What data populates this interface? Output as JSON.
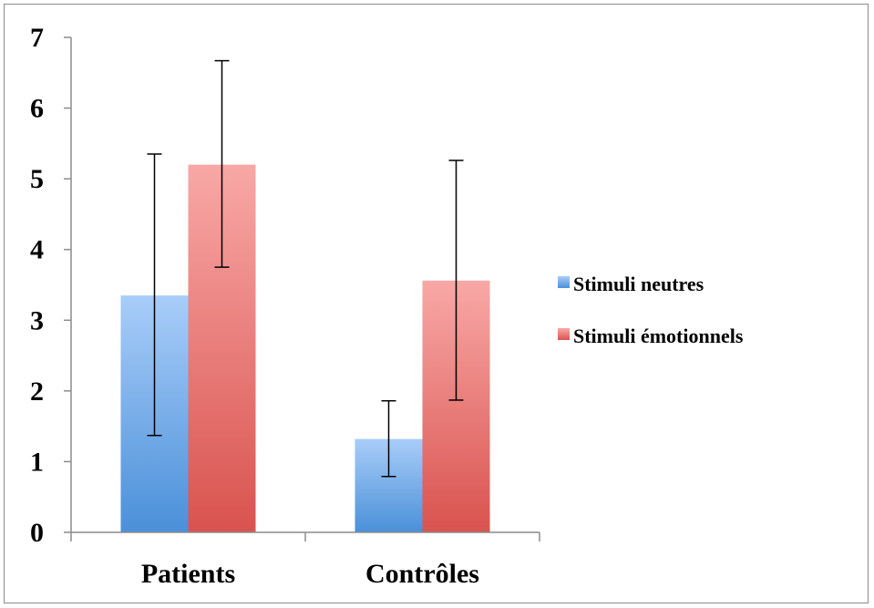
{
  "chart_data": {
    "type": "bar",
    "categories": [
      "Patients",
      "Contrôles"
    ],
    "series": [
      {
        "name": "Stimuli neutres",
        "values": [
          3.35,
          1.32
        ],
        "error_low": [
          1.37,
          0.79
        ],
        "error_high": [
          5.35,
          1.86
        ],
        "color_top": "#a9cdf9",
        "color_bottom": "#4a90d9"
      },
      {
        "name": "Stimuli émotionnels",
        "values": [
          5.2,
          3.56
        ],
        "error_low": [
          3.75,
          1.87
        ],
        "error_high": [
          6.67,
          5.26
        ],
        "color_top": "#f8a8a6",
        "color_bottom": "#d9534f"
      }
    ],
    "ylim": [
      0,
      7
    ],
    "yticks": [
      "0",
      "1",
      "2",
      "3",
      "4",
      "5",
      "6",
      "7"
    ],
    "grid": false,
    "legend_position": "right",
    "title": "",
    "xlabel": "",
    "ylabel": ""
  }
}
